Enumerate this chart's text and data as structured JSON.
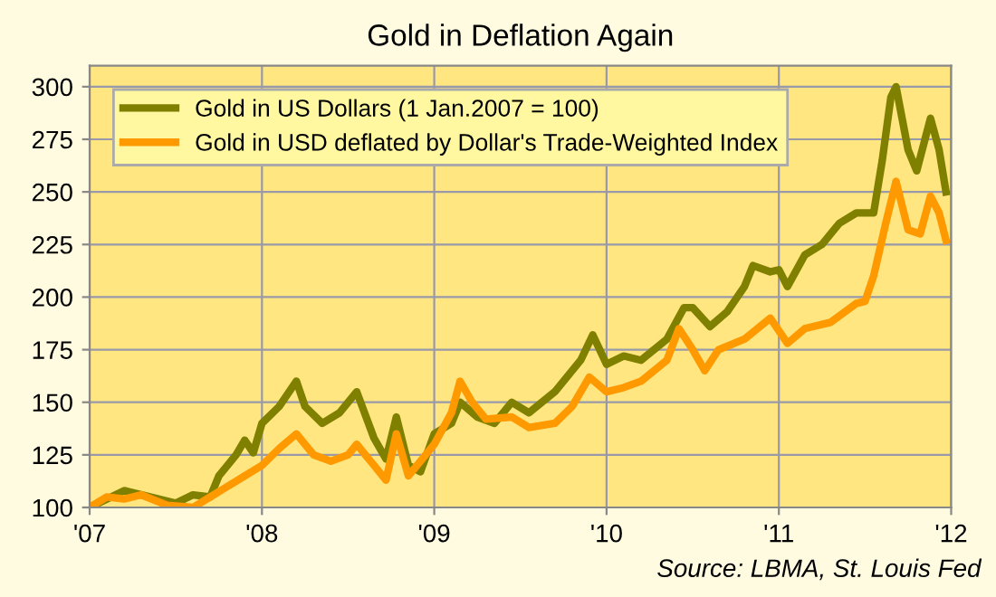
{
  "chart_data": {
    "type": "line",
    "title": "Gold in Deflation Again",
    "xlim": [
      2007,
      2012
    ],
    "xticks": [
      {
        "value": 2007,
        "label": "'07"
      },
      {
        "value": 2008,
        "label": "'08"
      },
      {
        "value": 2009,
        "label": "'09"
      },
      {
        "value": 2010,
        "label": "'10"
      },
      {
        "value": 2011,
        "label": "'11"
      },
      {
        "value": 2012,
        "label": "'12"
      }
    ],
    "ylim": [
      100,
      310
    ],
    "yticks": [
      100,
      125,
      150,
      175,
      200,
      225,
      250,
      275,
      300
    ],
    "grid": true,
    "legend": "top left",
    "line_style": "solid",
    "marker": "none",
    "annotations": [
      "Source: LBMA, St. Louis Fed"
    ],
    "series": [
      {
        "name": "Gold in US Dollars (1 Jan.2007 = 100)",
        "color": "#7f7f00",
        "x": [
          2007.0,
          2007.1,
          2007.2,
          2007.35,
          2007.5,
          2007.6,
          2007.7,
          2007.75,
          2007.85,
          2007.9,
          2007.95,
          2008.0,
          2008.1,
          2008.2,
          2008.25,
          2008.35,
          2008.45,
          2008.55,
          2008.65,
          2008.72,
          2008.78,
          2008.85,
          2008.92,
          2009.0,
          2009.1,
          2009.15,
          2009.25,
          2009.35,
          2009.45,
          2009.55,
          2009.7,
          2009.85,
          2009.92,
          2010.0,
          2010.1,
          2010.2,
          2010.35,
          2010.45,
          2010.5,
          2010.6,
          2010.7,
          2010.8,
          2010.85,
          2010.95,
          2011.0,
          2011.05,
          2011.15,
          2011.25,
          2011.35,
          2011.45,
          2011.55,
          2011.6,
          2011.65,
          2011.68,
          2011.75,
          2011.8,
          2011.88,
          2011.93,
          2011.97
        ],
        "values": [
          100,
          104,
          108,
          105,
          102,
          106,
          105,
          115,
          125,
          132,
          126,
          140,
          148,
          160,
          148,
          140,
          145,
          155,
          133,
          123,
          143,
          120,
          117,
          135,
          140,
          150,
          143,
          140,
          150,
          145,
          155,
          170,
          182,
          168,
          172,
          170,
          180,
          195,
          195,
          186,
          193,
          205,
          215,
          212,
          213,
          205,
          220,
          225,
          235,
          240,
          240,
          265,
          295,
          300,
          270,
          260,
          285,
          270,
          250
        ]
      },
      {
        "name": "Gold in USD deflated by Dollar's Trade-Weighted Index",
        "color": "#ff9900",
        "x": [
          2007.0,
          2007.1,
          2007.2,
          2007.3,
          2007.45,
          2007.6,
          2007.7,
          2007.8,
          2007.9,
          2008.0,
          2008.1,
          2008.2,
          2008.3,
          2008.4,
          2008.5,
          2008.55,
          2008.65,
          2008.72,
          2008.78,
          2008.85,
          2008.92,
          2009.0,
          2009.1,
          2009.15,
          2009.22,
          2009.3,
          2009.45,
          2009.55,
          2009.7,
          2009.8,
          2009.9,
          2010.0,
          2010.1,
          2010.2,
          2010.35,
          2010.42,
          2010.5,
          2010.57,
          2010.65,
          2010.8,
          2010.95,
          2011.05,
          2011.15,
          2011.3,
          2011.45,
          2011.5,
          2011.55,
          2011.62,
          2011.68,
          2011.75,
          2011.82,
          2011.88,
          2011.93,
          2011.97
        ],
        "values": [
          100,
          105,
          104,
          106,
          101,
          100,
          105,
          110,
          115,
          120,
          128,
          135,
          125,
          122,
          125,
          130,
          120,
          113,
          135,
          115,
          122,
          130,
          145,
          160,
          150,
          142,
          143,
          138,
          140,
          148,
          162,
          155,
          157,
          160,
          170,
          185,
          175,
          165,
          175,
          180,
          190,
          178,
          185,
          188,
          197,
          198,
          210,
          235,
          255,
          232,
          230,
          248,
          240,
          227
        ]
      }
    ]
  }
}
